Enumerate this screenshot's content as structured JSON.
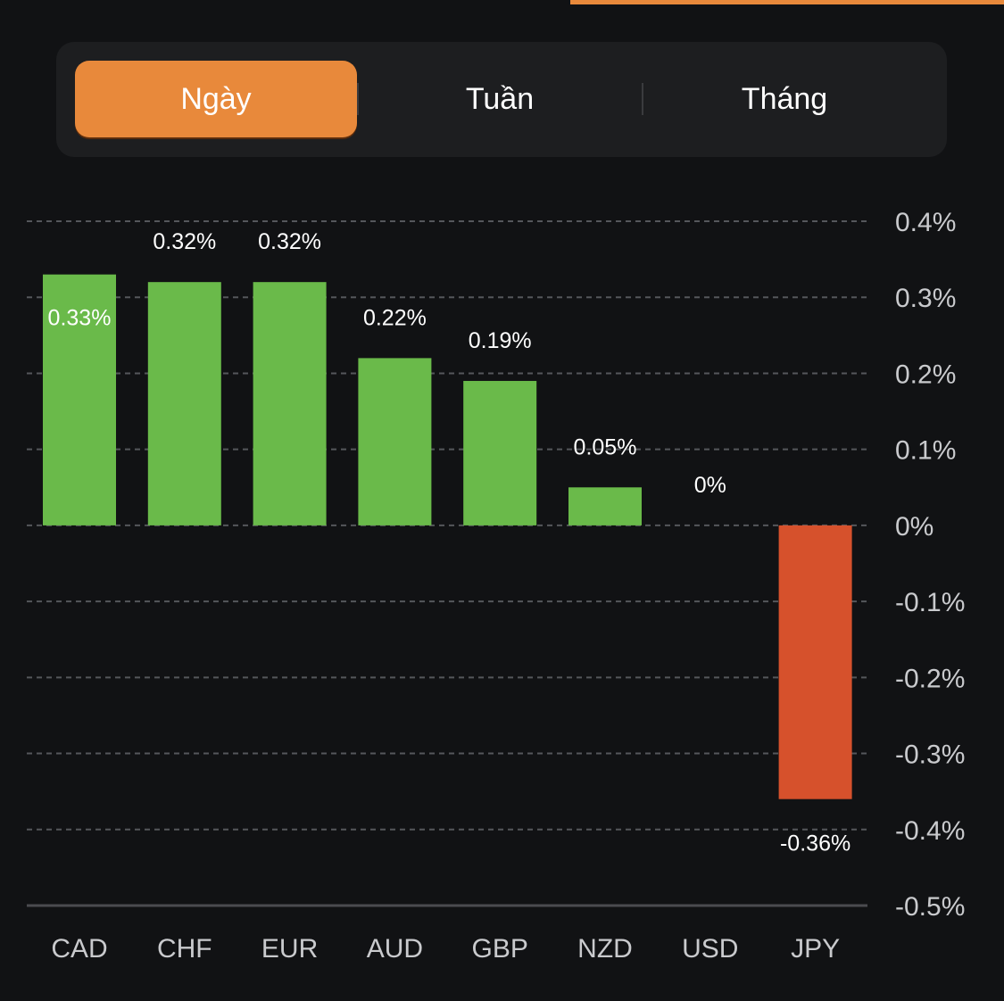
{
  "period_tabs": [
    {
      "label": "Ngày",
      "active": true
    },
    {
      "label": "Tuần",
      "active": false
    },
    {
      "label": "Tháng",
      "active": false
    }
  ],
  "colors": {
    "accent": "#e8893b",
    "positive": "#6aba4a",
    "negative": "#d6512c",
    "grid": "#55575b",
    "tick_text": "#c9cacd",
    "label_text": "#ffffff"
  },
  "chart_data": {
    "type": "bar",
    "title": "",
    "xlabel": "",
    "ylabel": "",
    "categories": [
      "CAD",
      "CHF",
      "EUR",
      "AUD",
      "GBP",
      "NZD",
      "USD",
      "JPY"
    ],
    "values": [
      0.33,
      0.32,
      0.32,
      0.22,
      0.19,
      0.05,
      0,
      -0.36
    ],
    "data_labels": [
      "0.33%",
      "0.32%",
      "0.32%",
      "0.22%",
      "0.19%",
      "0.05%",
      "0%",
      "-0.36%"
    ],
    "unit": "%",
    "ylim": [
      -0.5,
      0.4
    ],
    "yticks": [
      0.4,
      0.3,
      0.2,
      0.1,
      0,
      -0.1,
      -0.2,
      -0.3,
      -0.4,
      -0.5
    ],
    "ytick_labels": [
      "0.4%",
      "0.3%",
      "0.2%",
      "0.1%",
      "0%",
      "-0.1%",
      "-0.2%",
      "-0.3%",
      "-0.4%",
      "-0.5%"
    ],
    "y_axis_side": "right",
    "grid": true,
    "grid_style": "dashed",
    "legend": "none"
  }
}
